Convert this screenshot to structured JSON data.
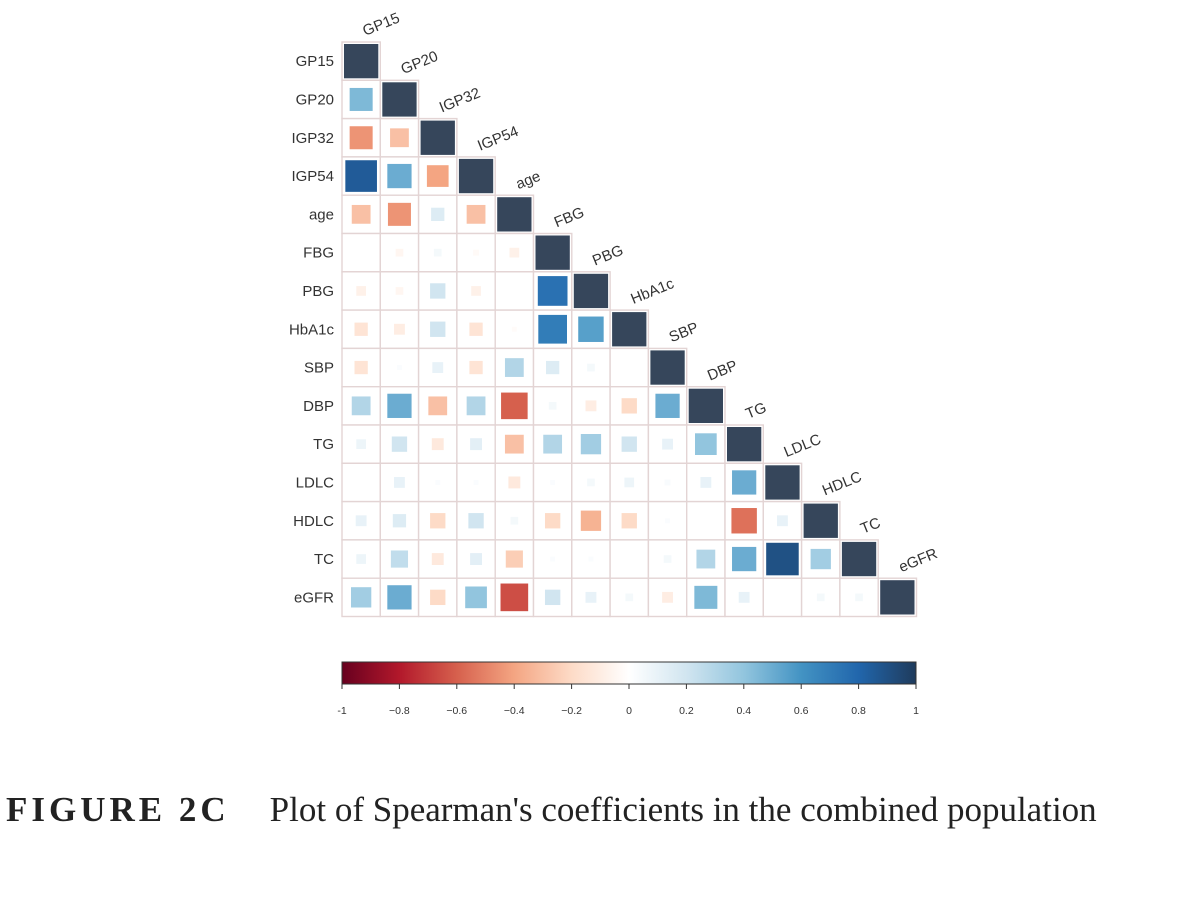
{
  "chart_data": {
    "type": "heatmap",
    "variables": [
      "GP15",
      "GP20",
      "IGP32",
      "IGP54",
      "age",
      "FBG",
      "PBG",
      "HbA1c",
      "SBP",
      "DBP",
      "TG",
      "LDLC",
      "HDLC",
      "TC",
      "eGFR"
    ],
    "matrix_lower": [
      [
        1
      ],
      [
        0.45,
        1
      ],
      [
        -0.45,
        -0.3,
        1
      ],
      [
        0.85,
        0.5,
        -0.4,
        1
      ],
      [
        -0.3,
        -0.45,
        0.15,
        -0.3,
        1
      ],
      [
        0.0,
        -0.05,
        0.05,
        -0.03,
        -0.08,
        1
      ],
      [
        -0.08,
        -0.05,
        0.2,
        -0.08,
        0.0,
        0.75,
        1
      ],
      [
        -0.15,
        -0.1,
        0.2,
        -0.15,
        -0.02,
        0.7,
        0.55,
        1
      ],
      [
        -0.15,
        0.02,
        0.1,
        -0.15,
        0.3,
        0.15,
        0.05,
        0.0,
        1
      ],
      [
        0.3,
        0.5,
        -0.3,
        0.3,
        -0.6,
        0.05,
        -0.1,
        -0.2,
        0.5,
        1
      ],
      [
        0.08,
        0.2,
        -0.12,
        0.12,
        -0.3,
        0.3,
        0.35,
        0.2,
        0.1,
        0.4,
        1
      ],
      [
        0.0,
        0.1,
        0.02,
        0.02,
        -0.12,
        0.02,
        0.05,
        0.08,
        0.03,
        0.1,
        0.5,
        1
      ],
      [
        0.1,
        0.15,
        -0.2,
        0.2,
        0.05,
        -0.2,
        -0.35,
        -0.2,
        0.02,
        0.0,
        -0.55,
        0.1,
        1
      ],
      [
        0.08,
        0.25,
        -0.12,
        0.12,
        -0.25,
        0.02,
        0.02,
        0.0,
        0.05,
        0.3,
        0.5,
        0.9,
        0.35,
        1
      ],
      [
        0.35,
        0.5,
        -0.2,
        0.4,
        -0.65,
        0.2,
        0.1,
        0.05,
        -0.1,
        0.45,
        0.1,
        0.0,
        0.05,
        0.05,
        1
      ]
    ],
    "colorbar": {
      "range": [
        -1,
        1
      ],
      "tick_labels": [
        "-1",
        "−0.8",
        "−0.6",
        "−0.4",
        "−0.2",
        "0",
        "0.2",
        "0.4",
        "0.6",
        "0.8",
        "1"
      ],
      "tick_values": [
        -1,
        -0.8,
        -0.6,
        -0.4,
        -0.2,
        0,
        0.2,
        0.4,
        0.6,
        0.8,
        1
      ],
      "colors": [
        "#67001f",
        "#b2182b",
        "#d6604d",
        "#f4a582",
        "#fddbc7",
        "#ffffff",
        "#d1e5f0",
        "#92c5de",
        "#4393c3",
        "#2166ac",
        "#1f3b5c"
      ]
    },
    "diagonal_color": "#36465b",
    "grid": true
  },
  "caption": {
    "label": "FIGURE 2C",
    "text": "Plot of Spearman's coefficients in the combined population"
  }
}
